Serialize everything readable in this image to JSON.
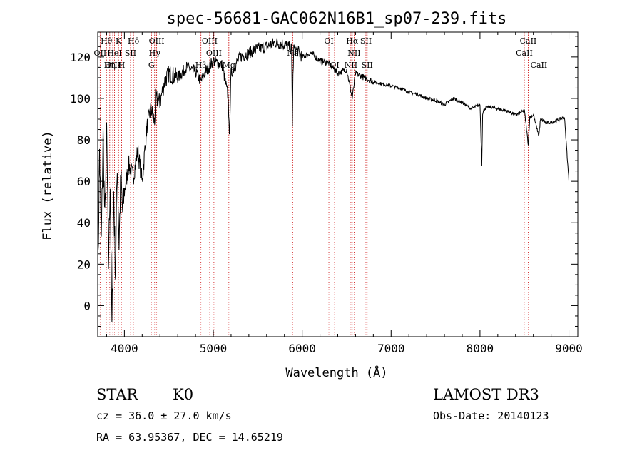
{
  "chart_data": {
    "type": "line",
    "title": "spec-56681-GAC062N16B1_sp07-239.fits",
    "xlabel": "Wavelength (Å)",
    "ylabel": "Flux (relative)",
    "xlim": [
      3700,
      9100
    ],
    "ylim": [
      -15,
      132
    ],
    "xticks": [
      4000,
      5000,
      6000,
      7000,
      8000,
      9000
    ],
    "yticks": [
      0,
      20,
      40,
      60,
      80,
      100,
      120
    ],
    "xtick_labels": [
      "4000",
      "5000",
      "6000",
      "7000",
      "8000",
      "9000"
    ],
    "ytick_labels": [
      "0",
      "20",
      "40",
      "60",
      "80",
      "100",
      "120"
    ],
    "line_color": "#000000",
    "marker_color": "#cc0000",
    "series": [
      {
        "name": "spectrum",
        "x": [
          3700,
          3720,
          3740,
          3760,
          3780,
          3800,
          3820,
          3840,
          3860,
          3880,
          3900,
          3920,
          3940,
          3960,
          3980,
          4000,
          4050,
          4100,
          4150,
          4200,
          4250,
          4300,
          4340,
          4350,
          4400,
          4450,
          4500,
          4600,
          4700,
          4800,
          4861,
          4900,
          5000,
          5100,
          5170,
          5180,
          5200,
          5300,
          5400,
          5500,
          5600,
          5700,
          5800,
          5880,
          5890,
          5896,
          5905,
          5950,
          6000,
          6100,
          6200,
          6300,
          6400,
          6500,
          6563,
          6600,
          6700,
          6800,
          6900,
          7000,
          7100,
          7200,
          7300,
          7400,
          7500,
          7600,
          7700,
          7800,
          7900,
          8000,
          8020,
          8030,
          8050,
          8100,
          8200,
          8300,
          8400,
          8500,
          8542,
          8560,
          8600,
          8662,
          8680,
          8750,
          8850,
          8950,
          9000
        ],
        "y": [
          5,
          75,
          30,
          82,
          40,
          85,
          20,
          60,
          -12,
          55,
          15,
          70,
          30,
          62,
          45,
          55,
          68,
          62,
          75,
          60,
          85,
          95,
          88,
          100,
          98,
          108,
          112,
          110,
          115,
          113,
          108,
          112,
          118,
          116,
          100,
          80,
          112,
          120,
          122,
          124,
          125,
          127,
          126,
          124,
          88,
          110,
          124,
          123,
          120,
          122,
          118,
          117,
          112,
          114,
          100,
          112,
          110,
          108,
          107,
          106,
          105,
          103,
          102,
          100,
          99,
          97,
          100,
          98,
          95,
          97,
          68,
          93,
          95,
          96,
          95,
          94,
          92,
          94,
          78,
          91,
          92,
          82,
          90,
          88,
          89,
          91,
          60
        ]
      }
    ],
    "lines": [
      {
        "label": "Hθ",
        "x": 3798,
        "row": 1
      },
      {
        "label": "K",
        "x": 3934,
        "row": 1
      },
      {
        "label": "Hδ",
        "x": 4102,
        "row": 1
      },
      {
        "label": "OIII",
        "x": 4363,
        "row": 1
      },
      {
        "label": "OIII",
        "x": 4959,
        "row": 1
      },
      {
        "label": "OI",
        "x": 6300,
        "row": 1
      },
      {
        "label": "Hα",
        "x": 6563,
        "row": 1
      },
      {
        "label": "SII",
        "x": 6717,
        "row": 1
      },
      {
        "label": "CaII",
        "x": 8542,
        "row": 1
      },
      {
        "label": "OII",
        "x": 3727,
        "row": 2
      },
      {
        "label": "HeI",
        "x": 3889,
        "row": 2
      },
      {
        "label": "SII",
        "x": 4069,
        "row": 2
      },
      {
        "label": "Hγ",
        "x": 4340,
        "row": 2
      },
      {
        "label": "OIII",
        "x": 5007,
        "row": 2
      },
      {
        "label": "Na",
        "x": 5893,
        "row": 2
      },
      {
        "label": "NII",
        "x": 6584,
        "row": 2
      },
      {
        "label": "CaII",
        "x": 8498,
        "row": 2
      },
      {
        "label": "OIII",
        "x": 3869,
        "row": 3
      },
      {
        "label": "Hη",
        "x": 3835,
        "row": 3
      },
      {
        "label": "H",
        "x": 3969,
        "row": 3
      },
      {
        "label": "G",
        "x": 4304,
        "row": 3
      },
      {
        "label": "Hβ",
        "x": 4861,
        "row": 3
      },
      {
        "label": "Mg",
        "x": 5175,
        "row": 3
      },
      {
        "label": "OI",
        "x": 6364,
        "row": 3
      },
      {
        "label": "NII",
        "x": 6548,
        "row": 3
      },
      {
        "label": "SII",
        "x": 6731,
        "row": 3
      },
      {
        "label": "CaII",
        "x": 8662,
        "row": 3
      }
    ]
  },
  "info": {
    "class": "STAR",
    "subclass": "K0",
    "cz": "cz = 36.0 ± 27.0 km/s",
    "radec": "RA =  63.95367, DEC =  14.65219",
    "survey": "LAMOST DR3",
    "obsdate": "Obs-Date: 20140123"
  }
}
